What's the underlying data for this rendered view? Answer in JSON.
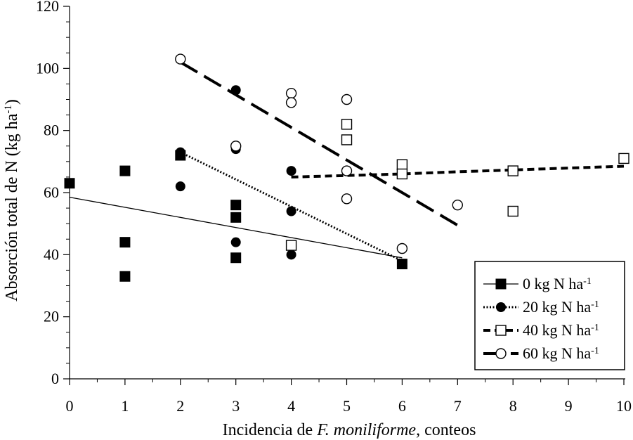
{
  "chart_data": {
    "type": "scatter",
    "xlabel": {
      "prefix": "Incidencia de ",
      "italic": "F. moniliforme",
      "suffix": ", conteos"
    },
    "ylabel": {
      "main": "Absorción total de N (kg ha",
      "sup": "-1",
      "close": ")"
    },
    "xlim": [
      0,
      10
    ],
    "ylim": [
      0,
      120
    ],
    "x_ticks": [
      0,
      1,
      2,
      3,
      4,
      5,
      6,
      7,
      8,
      9,
      10
    ],
    "y_ticks": [
      0,
      20,
      40,
      60,
      80,
      100,
      120
    ],
    "grid": false,
    "legend_position": "bottom-right",
    "series": [
      {
        "name": "0 kg N ha",
        "name_sup": "-1",
        "marker": "filled-square",
        "line_style": "solid-thin",
        "points": [
          [
            0,
            63
          ],
          [
            1,
            67
          ],
          [
            1,
            44
          ],
          [
            1,
            33
          ],
          [
            2,
            72
          ],
          [
            3,
            56
          ],
          [
            3,
            52
          ],
          [
            3,
            39
          ],
          [
            6,
            37
          ]
        ],
        "trend": [
          [
            0,
            58.5
          ],
          [
            6,
            39
          ]
        ]
      },
      {
        "name": "20 kg N ha",
        "name_sup": "-1",
        "marker": "filled-circle",
        "line_style": "dotted",
        "points": [
          [
            2,
            73
          ],
          [
            2,
            62
          ],
          [
            3,
            93
          ],
          [
            3,
            74
          ],
          [
            3,
            44
          ],
          [
            4,
            67
          ],
          [
            4,
            54
          ],
          [
            4,
            40
          ]
        ],
        "trend": [
          [
            2,
            73
          ],
          [
            6,
            38
          ]
        ]
      },
      {
        "name": "40 kg N ha",
        "name_sup": "-1",
        "marker": "open-square",
        "line_style": "dashed",
        "points": [
          [
            4,
            43
          ],
          [
            5,
            82
          ],
          [
            5,
            77
          ],
          [
            6,
            69
          ],
          [
            6,
            66
          ],
          [
            8,
            67
          ],
          [
            8,
            54
          ],
          [
            10,
            71
          ]
        ],
        "trend": [
          [
            4,
            65
          ],
          [
            5,
            65.5
          ],
          [
            6,
            66
          ],
          [
            7,
            66.7
          ],
          [
            8,
            67.3
          ],
          [
            9,
            67.9
          ],
          [
            10,
            68.5
          ]
        ]
      },
      {
        "name": "60 kg N ha",
        "name_sup": "-1",
        "marker": "open-circle",
        "line_style": "long-dash",
        "points": [
          [
            2,
            103
          ],
          [
            3,
            75
          ],
          [
            4,
            92
          ],
          [
            4,
            89
          ],
          [
            5,
            90
          ],
          [
            5,
            67
          ],
          [
            5,
            58
          ],
          [
            6,
            42
          ],
          [
            7,
            56
          ]
        ],
        "trend": [
          [
            2,
            102
          ],
          [
            7,
            49.5
          ]
        ]
      }
    ]
  }
}
